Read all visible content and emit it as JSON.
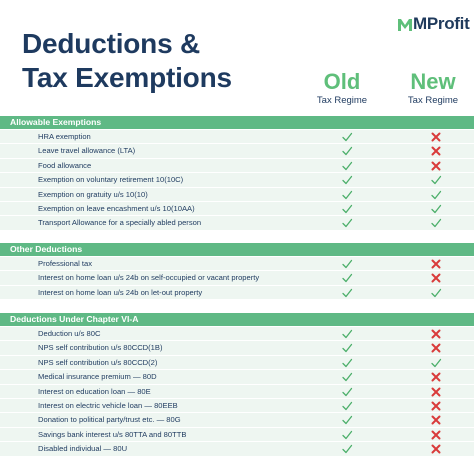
{
  "brand": {
    "name": "MProfit",
    "accent": "#5fbf7a"
  },
  "title": {
    "line1": "Deductions &",
    "line2": "Tax Exemptions"
  },
  "columns": {
    "old": {
      "label": "Old",
      "sub": "Tax Regime"
    },
    "new": {
      "label": "New",
      "sub": "Tax Regime"
    }
  },
  "colors": {
    "check": "#4caf6a",
    "cross": "#d93b3b",
    "section": "#5fb985",
    "row": "#eef6f1",
    "text": "#1e3a5f"
  },
  "sections": [
    {
      "title": "Allowable Exemptions",
      "rows": [
        {
          "label": "HRA exemption",
          "old": "check-icon",
          "new": "cross-icon"
        },
        {
          "label": "Leave travel allowance (LTA)",
          "old": "check-icon",
          "new": "cross-icon"
        },
        {
          "label": "Food allowance",
          "old": "check-icon",
          "new": "cross-icon"
        },
        {
          "label": "Exemption on voluntary retirement 10(10C)",
          "old": "check-icon",
          "new": "check-icon"
        },
        {
          "label": "Exemption on gratuity u/s 10(10)",
          "old": "check-icon",
          "new": "check-icon"
        },
        {
          "label": "Exemption on leave encashment u/s 10(10AA)",
          "old": "check-icon",
          "new": "check-icon"
        },
        {
          "label": "Transport Allowance for a specially abled person",
          "old": "check-icon",
          "new": "check-icon"
        }
      ]
    },
    {
      "title": "Other Deductions",
      "rows": [
        {
          "label": "Professional tax",
          "old": "check-icon",
          "new": "cross-icon"
        },
        {
          "label": "Interest on home loan u/s 24b on self-occupied or vacant property",
          "old": "check-icon",
          "new": "cross-icon"
        },
        {
          "label": "Interest on home loan u/s 24b on let-out property",
          "old": "check-icon",
          "new": "check-icon"
        }
      ]
    },
    {
      "title": "Deductions Under Chapter VI-A",
      "rows": [
        {
          "label": "Deduction u/s 80C",
          "old": "check-icon",
          "new": "cross-icon"
        },
        {
          "label": "NPS self contribution u/s 80CCD(1B)",
          "old": "check-icon",
          "new": "cross-icon"
        },
        {
          "label": "NPS self contribution u/s 80CCD(2)",
          "old": "check-icon",
          "new": "check-icon"
        },
        {
          "label": "Medical insurance premium — 80D",
          "old": "check-icon",
          "new": "cross-icon"
        },
        {
          "label": "Interest on education loan — 80E",
          "old": "check-icon",
          "new": "cross-icon"
        },
        {
          "label": "Interest on  electric vehicle loan — 80EEB",
          "old": "check-icon",
          "new": "cross-icon"
        },
        {
          "label": "Donation to political party/trust etc. — 80G",
          "old": "check-icon",
          "new": "cross-icon"
        },
        {
          "label": "Savings bank interest u/s 80TTA and 80TTB",
          "old": "check-icon",
          "new": "cross-icon"
        },
        {
          "label": "Disabled individual — 80U",
          "old": "check-icon",
          "new": "cross-icon"
        }
      ]
    }
  ]
}
